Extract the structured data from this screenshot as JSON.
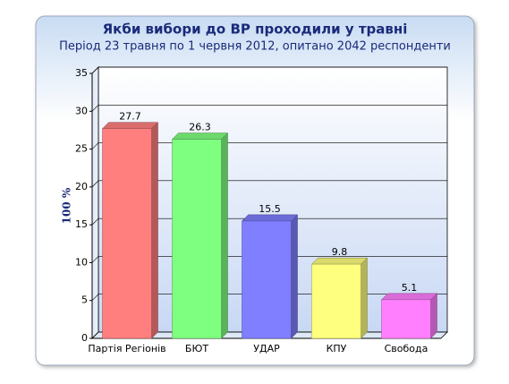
{
  "chart_data": {
    "type": "bar3d",
    "title": "Якби вибори до ВР проходили у травні",
    "subtitle": "Період 23 травня по 1 червня 2012, опитано 2042 респонденти",
    "y_label": "100 %",
    "categories": [
      "Партія Регіонів",
      "БЮТ",
      "УДАР",
      "КПУ",
      "Свобода"
    ],
    "values": [
      27.7,
      26.3,
      15.5,
      9.8,
      5.1
    ],
    "colors": [
      "#ff7f7f",
      "#7fff7f",
      "#7f7fff",
      "#ffff7f",
      "#ff7fff"
    ],
    "ylim": [
      0,
      35
    ],
    "yticks": [
      0,
      5,
      10,
      15,
      20,
      25,
      30,
      35
    ],
    "grid": true
  }
}
